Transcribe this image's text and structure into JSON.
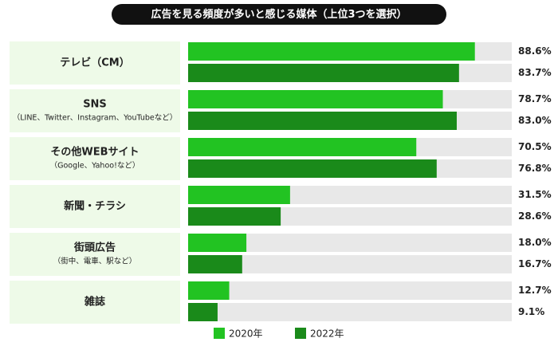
{
  "chart_data": {
    "type": "hbar",
    "title": "広告を見る頻度が多いと感じる媒体（上位3つを選択）",
    "categories": [
      "テレビ（CM）",
      "SNS",
      "その他WEBサイト",
      "新聞・チラシ",
      "街頭広告",
      "雑誌"
    ],
    "category_notes": [
      null,
      "（LINE、Twitter、Instagram、YouTubeなど）",
      "（Google、Yahoo!など）",
      null,
      "（街中、電車、駅など）",
      null
    ],
    "xlim": [
      0,
      100
    ],
    "series": [
      {
        "name": "2020年",
        "color": "#22c322",
        "values": [
          88.6,
          78.7,
          70.5,
          31.5,
          18.0,
          12.7
        ],
        "value_labels": [
          "88.6%",
          "78.7%",
          "70.5%",
          "31.5%",
          "18.0%",
          "12.7%"
        ]
      },
      {
        "name": "2022年",
        "color": "#1a8a1a",
        "values": [
          83.7,
          83.0,
          76.8,
          28.6,
          16.7,
          9.1
        ],
        "value_labels": [
          "83.7%",
          "83.0%",
          "76.8%",
          "28.6%",
          "16.7%",
          "9.1%"
        ]
      }
    ]
  }
}
